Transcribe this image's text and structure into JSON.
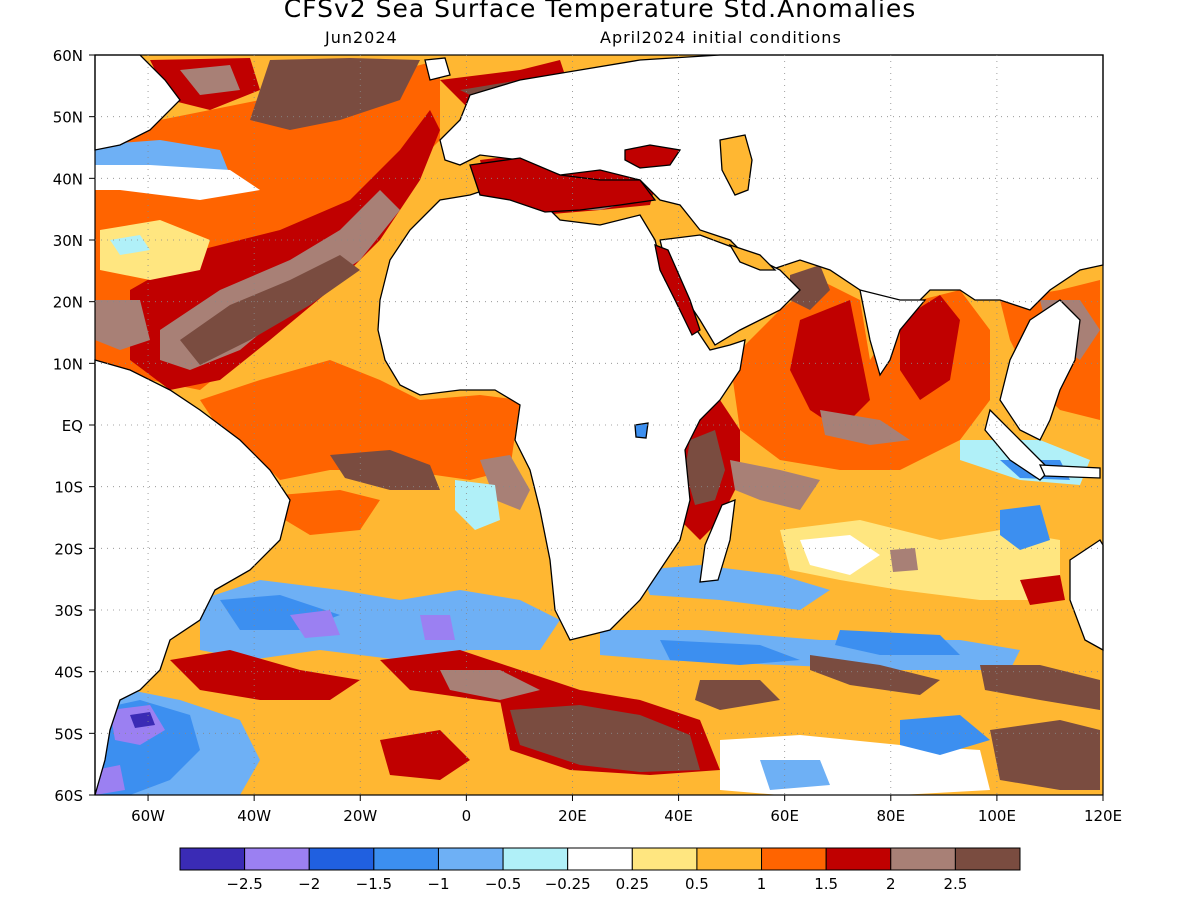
{
  "title": "CFSv2 Sea Surface Temperature Std.Anomalies",
  "subtitle_left": "Jun2024",
  "subtitle_right": "April2024 initial conditions",
  "map": {
    "lon_range": [
      -70,
      120
    ],
    "lat_range": [
      -60,
      60
    ],
    "lon_ticks": [
      {
        "lon": -60,
        "label": "60W"
      },
      {
        "lon": -40,
        "label": "40W"
      },
      {
        "lon": -20,
        "label": "20W"
      },
      {
        "lon": 0,
        "label": "0"
      },
      {
        "lon": 20,
        "label": "20E"
      },
      {
        "lon": 40,
        "label": "40E"
      },
      {
        "lon": 60,
        "label": "60E"
      },
      {
        "lon": 80,
        "label": "80E"
      },
      {
        "lon": 100,
        "label": "100E"
      },
      {
        "lon": 120,
        "label": "120E"
      }
    ],
    "lat_ticks": [
      {
        "lat": 60,
        "label": "60N"
      },
      {
        "lat": 50,
        "label": "50N"
      },
      {
        "lat": 40,
        "label": "40N"
      },
      {
        "lat": 30,
        "label": "30N"
      },
      {
        "lat": 20,
        "label": "20N"
      },
      {
        "lat": 10,
        "label": "10N"
      },
      {
        "lat": 0,
        "label": "EQ"
      },
      {
        "lat": -10,
        "label": "10S"
      },
      {
        "lat": -20,
        "label": "20S"
      },
      {
        "lat": -30,
        "label": "30S"
      },
      {
        "lat": -40,
        "label": "40S"
      },
      {
        "lat": -50,
        "label": "50S"
      },
      {
        "lat": -60,
        "label": "60S"
      }
    ],
    "grid_lines": "dotted",
    "ocean_default_category": "0.5 to 1"
  },
  "colorbar": {
    "colors": [
      "#3a2bb5",
      "#9b80f2",
      "#2060e0",
      "#3c8ff0",
      "#6eb0f5",
      "#b0f0f8",
      "#ffffff",
      "#ffe680",
      "#ffb732",
      "#ff6400",
      "#c00000",
      "#a88076",
      "#7a4c40"
    ],
    "labels": [
      "-2.5",
      "-2",
      "-1.5",
      "-1",
      "-0.5",
      "-0.25",
      "0.25",
      "0.5",
      "1",
      "1.5",
      "2",
      "2.5"
    ]
  }
}
